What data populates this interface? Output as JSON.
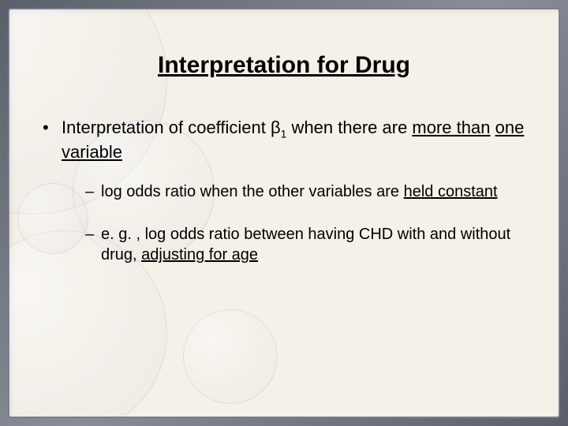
{
  "slide": {
    "title": "Interpretation for Drug",
    "bullet_prefix": "Interpretation of coefficient ",
    "beta_symbol": "β",
    "beta_subscript": "1",
    "bullet_mid": " when there are ",
    "bullet_u1": "more than",
    "bullet_mid2": " ",
    "bullet_u2": "one variable",
    "sub1_a": "log odds ratio when the other variables are ",
    "sub1_u": "held constant",
    "sub2_a": "e. g. , log odds ratio between having CHD with and without drug, ",
    "sub2_u": "adjusting for age"
  },
  "style": {
    "background_color": "#f5f1e8",
    "frame_gradient_from": "#5a5f6a",
    "frame_gradient_to": "#888d98",
    "title_fontsize": 30,
    "body_fontsize": 22,
    "sub_fontsize": 20,
    "text_color": "#000000",
    "circle_color": "rgba(140,140,150,0.18)"
  }
}
